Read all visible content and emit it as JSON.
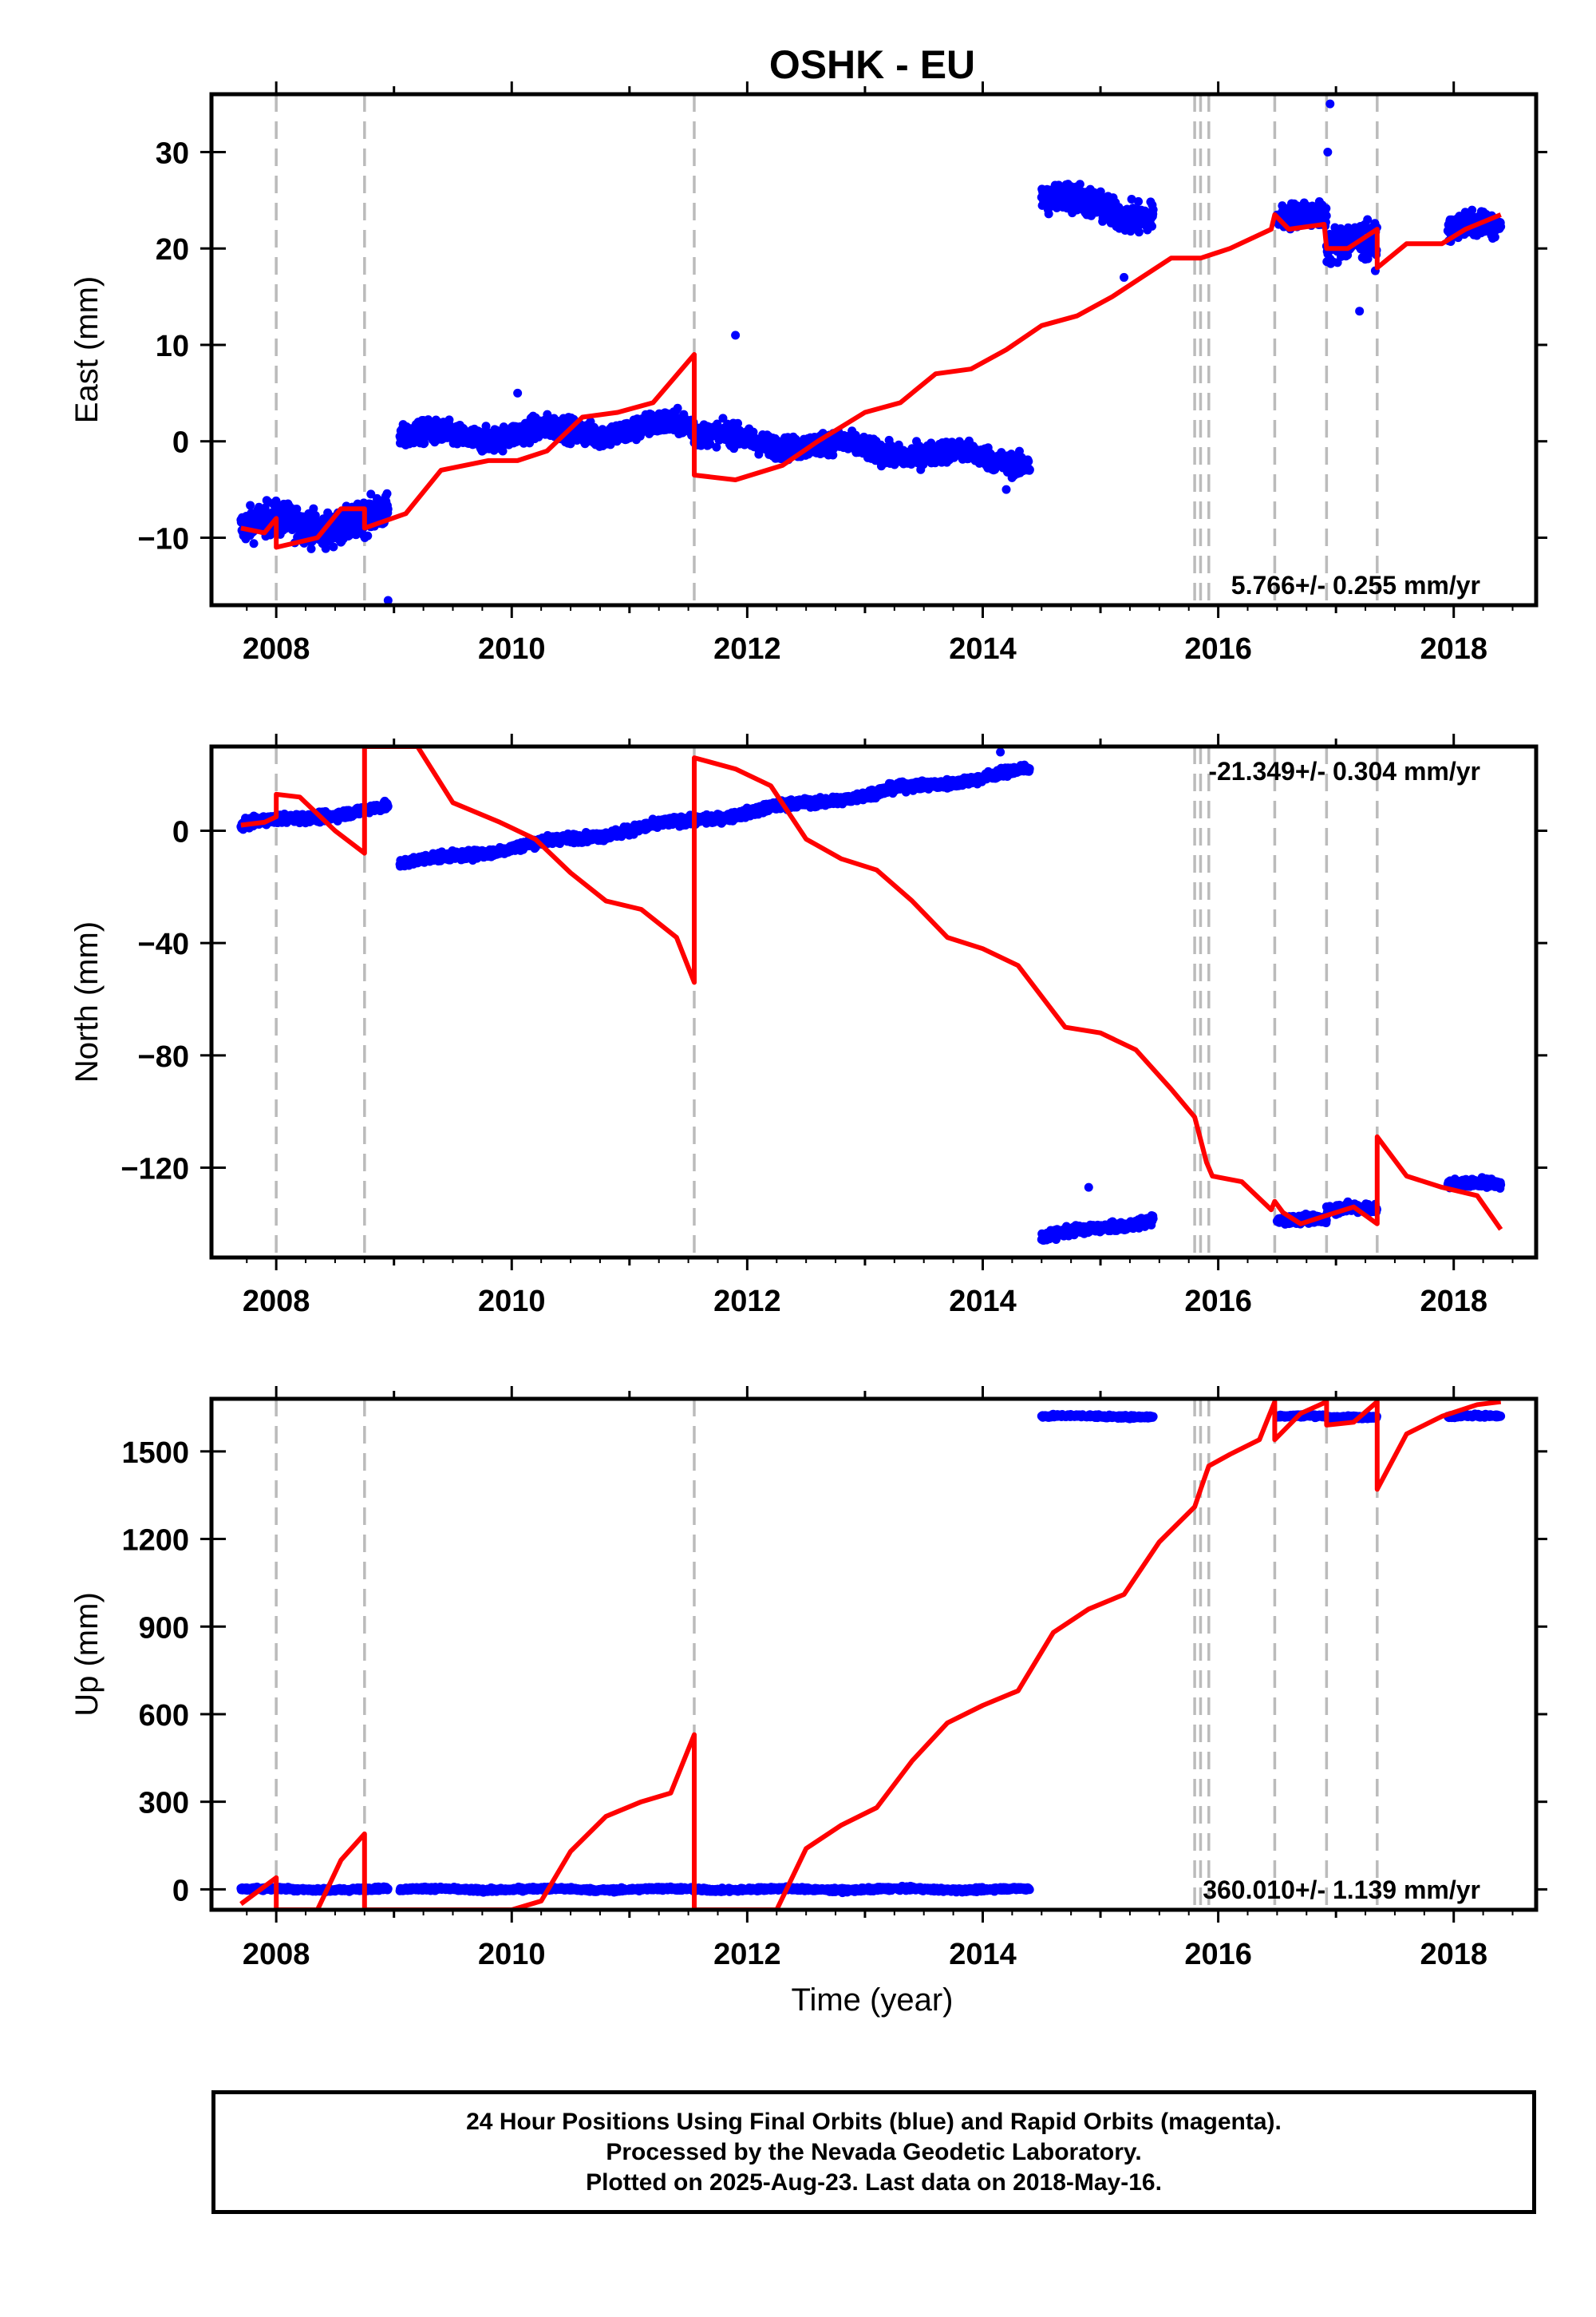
{
  "chart_data": {
    "title": "OSHK - EU",
    "type": "scatter",
    "xlabel": "Time (year)",
    "xlim": [
      2007.45,
      2018.7
    ],
    "xticks": [
      2008,
      2010,
      2012,
      2014,
      2016,
      2018
    ],
    "equipment_changes": [
      2008.0,
      2008.75,
      2011.55,
      2015.8,
      2015.85,
      2015.92,
      2016.48,
      2016.92,
      2017.35
    ],
    "colors": {
      "final_orbits": "#0000ff",
      "model": "#ff0000",
      "event_lines": "#bbbbbb"
    },
    "panels": [
      {
        "name": "East",
        "ylabel": "East (mm)",
        "ylim": [
          -17,
          36
        ],
        "yticks": [
          -10,
          0,
          10,
          20,
          30
        ],
        "rate": "5.766+/- 0.255 mm/yr",
        "rate_position": "bottom-right",
        "segments": [
          {
            "start": 2007.7,
            "end": 2008.95,
            "level": -9,
            "slope": 0.8,
            "noise": 2,
            "outliers": [
              [
                2008.95,
                -16.5
              ]
            ]
          },
          {
            "start": 2009.05,
            "end": 2011.55,
            "level": 0.3,
            "slope": 0.5,
            "noise": 1.4,
            "outliers": [
              [
                2010.05,
                5
              ]
            ]
          },
          {
            "start": 2011.55,
            "end": 2014.4,
            "level": 0.5,
            "slope": -0.9,
            "noise": 1.3,
            "outliers": [
              [
                2011.9,
                11
              ],
              [
                2014.2,
                -5
              ]
            ]
          },
          {
            "start": 2014.5,
            "end": 2015.45,
            "level": 25,
            "slope": -1.5,
            "noise": 1.8,
            "outliers": [
              [
                2015.2,
                17
              ]
            ]
          },
          {
            "start": 2016.5,
            "end": 2016.92,
            "level": 23,
            "slope": 0,
            "noise": 1.5,
            "outliers": []
          },
          {
            "start": 2016.92,
            "end": 2017.35,
            "level": 20,
            "slope": 0,
            "noise": 2.2,
            "outliers": [
              [
                2016.95,
                35
              ],
              [
                2016.93,
                30
              ],
              [
                2017.2,
                13.5
              ]
            ]
          },
          {
            "start": 2017.95,
            "end": 2018.4,
            "level": 22,
            "slope": 0,
            "noise": 1.4,
            "outliers": []
          }
        ],
        "model": [
          [
            2007.7,
            -9
          ],
          [
            2007.9,
            -9.5
          ],
          [
            2008.0,
            -8
          ],
          [
            2008.0,
            -11
          ],
          [
            2008.35,
            -10
          ],
          [
            2008.55,
            -7
          ],
          [
            2008.75,
            -7
          ],
          [
            2008.75,
            -9
          ],
          [
            2009.1,
            -7.5
          ],
          [
            2009.4,
            -3
          ],
          [
            2009.8,
            -2
          ],
          [
            2010.05,
            -2
          ],
          [
            2010.3,
            -1
          ],
          [
            2010.6,
            2.5
          ],
          [
            2010.9,
            3
          ],
          [
            2011.2,
            4
          ],
          [
            2011.55,
            9
          ],
          [
            2011.55,
            -3.5
          ],
          [
            2011.9,
            -4
          ],
          [
            2012.3,
            -2.5
          ],
          [
            2012.6,
            0
          ],
          [
            2013.0,
            3
          ],
          [
            2013.3,
            4
          ],
          [
            2013.6,
            7
          ],
          [
            2013.9,
            7.5
          ],
          [
            2014.2,
            9.5
          ],
          [
            2014.5,
            12
          ],
          [
            2014.8,
            13
          ],
          [
            2015.1,
            15
          ],
          [
            2015.35,
            17
          ],
          [
            2015.6,
            19
          ],
          [
            2015.85,
            19
          ],
          [
            2016.1,
            20
          ],
          [
            2016.45,
            22
          ],
          [
            2016.48,
            23.5
          ],
          [
            2016.6,
            22
          ],
          [
            2016.9,
            22.5
          ],
          [
            2016.92,
            20
          ],
          [
            2017.1,
            20
          ],
          [
            2017.35,
            22
          ],
          [
            2017.35,
            18
          ],
          [
            2017.6,
            20.5
          ],
          [
            2017.9,
            20.5
          ],
          [
            2018.1,
            22
          ],
          [
            2018.4,
            23.5
          ]
        ]
      },
      {
        "name": "North",
        "ylabel": "North (mm)",
        "ylim": [
          -152,
          30
        ],
        "yticks": [
          -120,
          -80,
          -40,
          0
        ],
        "rate": "-21.349+/- 0.304 mm/yr",
        "rate_position": "top-right",
        "segments": [
          {
            "start": 2007.7,
            "end": 2008.95,
            "level": 2,
            "slope": 5,
            "noise": 1.8,
            "outliers": []
          },
          {
            "start": 2009.05,
            "end": 2014.4,
            "level": -12,
            "slope": 6.3,
            "noise": 1.8,
            "outliers": [
              [
                2014.15,
                28
              ]
            ]
          },
          {
            "start": 2014.5,
            "end": 2015.45,
            "level": -145,
            "slope": 7,
            "noise": 1.8,
            "outliers": [
              [
                2014.9,
                -127
              ]
            ]
          },
          {
            "start": 2016.5,
            "end": 2016.92,
            "level": -139,
            "slope": 0,
            "noise": 1.8,
            "outliers": []
          },
          {
            "start": 2016.92,
            "end": 2017.35,
            "level": -135,
            "slope": 0,
            "noise": 2,
            "outliers": []
          },
          {
            "start": 2017.95,
            "end": 2018.4,
            "level": -126,
            "slope": 0,
            "noise": 1.8,
            "outliers": []
          }
        ],
        "model": [
          [
            2007.7,
            2
          ],
          [
            2007.9,
            3
          ],
          [
            2008.0,
            5
          ],
          [
            2008.0,
            13
          ],
          [
            2008.2,
            12
          ],
          [
            2008.5,
            0
          ],
          [
            2008.75,
            -8
          ],
          [
            2008.75,
            30
          ],
          [
            2009.2,
            30
          ],
          [
            2009.5,
            10
          ],
          [
            2009.9,
            3
          ],
          [
            2010.2,
            -3
          ],
          [
            2010.5,
            -15
          ],
          [
            2010.8,
            -25
          ],
          [
            2011.1,
            -28
          ],
          [
            2011.4,
            -38
          ],
          [
            2011.55,
            -54
          ],
          [
            2011.55,
            26
          ],
          [
            2011.9,
            22
          ],
          [
            2012.2,
            16
          ],
          [
            2012.5,
            -3
          ],
          [
            2012.8,
            -10
          ],
          [
            2013.1,
            -14
          ],
          [
            2013.4,
            -25
          ],
          [
            2013.7,
            -38
          ],
          [
            2014.0,
            -42
          ],
          [
            2014.3,
            -48
          ],
          [
            2014.7,
            -70
          ],
          [
            2015.0,
            -72
          ],
          [
            2015.3,
            -78
          ],
          [
            2015.6,
            -92
          ],
          [
            2015.8,
            -102
          ],
          [
            2015.85,
            -110
          ],
          [
            2015.9,
            -118
          ],
          [
            2015.95,
            -123
          ],
          [
            2016.2,
            -125
          ],
          [
            2016.45,
            -135
          ],
          [
            2016.48,
            -132
          ],
          [
            2016.55,
            -136
          ],
          [
            2016.7,
            -140
          ],
          [
            2016.92,
            -137
          ],
          [
            2017.15,
            -134
          ],
          [
            2017.35,
            -140
          ],
          [
            2017.35,
            -109
          ],
          [
            2017.6,
            -123
          ],
          [
            2017.9,
            -127
          ],
          [
            2018.2,
            -130
          ],
          [
            2018.4,
            -142
          ]
        ]
      },
      {
        "name": "Up",
        "ylabel": "Up (mm)",
        "ylim": [
          -70,
          1680
        ],
        "yticks": [
          0,
          300,
          600,
          900,
          1200,
          1500
        ],
        "rate": "360.010+/- 1.139 mm/yr",
        "rate_position": "bottom-right",
        "segments": [
          {
            "start": 2007.7,
            "end": 2008.95,
            "level": 0,
            "slope": 0,
            "noise": 7,
            "outliers": []
          },
          {
            "start": 2009.05,
            "end": 2014.4,
            "level": 0,
            "slope": 0,
            "noise": 7,
            "outliers": []
          },
          {
            "start": 2014.5,
            "end": 2015.45,
            "level": 1620,
            "slope": 0,
            "noise": 6,
            "outliers": []
          },
          {
            "start": 2016.5,
            "end": 2016.92,
            "level": 1620,
            "slope": 0,
            "noise": 6,
            "outliers": []
          },
          {
            "start": 2016.92,
            "end": 2017.35,
            "level": 1615,
            "slope": 0,
            "noise": 6,
            "outliers": []
          },
          {
            "start": 2017.95,
            "end": 2018.4,
            "level": 1620,
            "slope": 0,
            "noise": 6,
            "outliers": []
          }
        ],
        "model": [
          [
            2007.7,
            -50
          ],
          [
            2008.0,
            40
          ],
          [
            2008.0,
            -70
          ],
          [
            2008.35,
            -70
          ],
          [
            2008.55,
            100
          ],
          [
            2008.75,
            190
          ],
          [
            2008.75,
            -70
          ],
          [
            2010.0,
            -70
          ],
          [
            2010.25,
            -40
          ],
          [
            2010.5,
            130
          ],
          [
            2010.8,
            250
          ],
          [
            2011.1,
            300
          ],
          [
            2011.35,
            330
          ],
          [
            2011.55,
            530
          ],
          [
            2011.55,
            -70
          ],
          [
            2012.25,
            -70
          ],
          [
            2012.5,
            140
          ],
          [
            2012.8,
            220
          ],
          [
            2013.1,
            280
          ],
          [
            2013.4,
            440
          ],
          [
            2013.7,
            570
          ],
          [
            2014.0,
            630
          ],
          [
            2014.3,
            680
          ],
          [
            2014.6,
            880
          ],
          [
            2014.9,
            960
          ],
          [
            2015.2,
            1010
          ],
          [
            2015.5,
            1190
          ],
          [
            2015.8,
            1310
          ],
          [
            2015.85,
            1370
          ],
          [
            2015.92,
            1450
          ],
          [
            2016.1,
            1490
          ],
          [
            2016.35,
            1540
          ],
          [
            2016.48,
            1670
          ],
          [
            2016.48,
            1540
          ],
          [
            2016.7,
            1630
          ],
          [
            2016.92,
            1670
          ],
          [
            2016.92,
            1590
          ],
          [
            2017.15,
            1600
          ],
          [
            2017.35,
            1670
          ],
          [
            2017.35,
            1370
          ],
          [
            2017.6,
            1560
          ],
          [
            2017.9,
            1620
          ],
          [
            2018.2,
            1660
          ],
          [
            2018.4,
            1670
          ]
        ]
      }
    ]
  },
  "footer": {
    "line1": "24 Hour Positions Using Final Orbits (blue) and Rapid Orbits (magenta).",
    "line2": "Processed by the Nevada Geodetic Laboratory.",
    "line3": "Plotted on 2025-Aug-23. Last data on 2018-May-16."
  }
}
